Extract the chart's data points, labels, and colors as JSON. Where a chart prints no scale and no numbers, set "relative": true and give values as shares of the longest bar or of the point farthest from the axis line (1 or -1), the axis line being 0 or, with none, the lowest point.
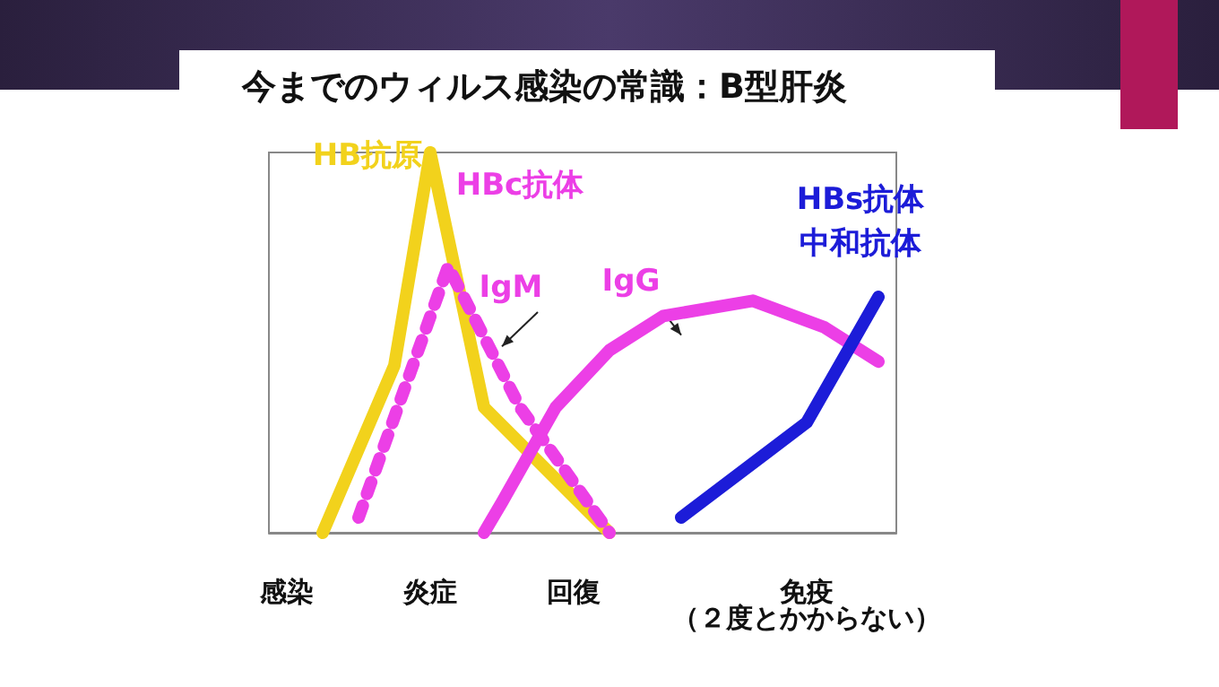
{
  "chart_data": {
    "type": "line",
    "relative": true,
    "title": "今までのウィルス感染の常識：B型肝炎",
    "categories": [
      null,
      "感染",
      null,
      null,
      null,
      null,
      null,
      null,
      null,
      "炎症",
      null,
      null,
      null,
      null,
      null,
      null,
      null,
      "回復",
      null,
      null,
      null,
      null,
      null,
      null,
      null,
      null,
      null,
      null,
      null,
      null,
      "免疫",
      null,
      null,
      null,
      null,
      null
    ],
    "series": [
      {
        "name": "HB抗原",
        "color": "#f2d21c",
        "line_style": "solid",
        "values": [
          null,
          null,
          null,
          0,
          null,
          null,
          null,
          0.44,
          null,
          1,
          null,
          null,
          0.33,
          null,
          null,
          null,
          null,
          null,
          null,
          0,
          null,
          null,
          null,
          null,
          null,
          null,
          null,
          null,
          null,
          null,
          null,
          null,
          null,
          null,
          null,
          null
        ]
      },
      {
        "name": "IgM",
        "color": "#ec3fe6",
        "line_style": "dotted",
        "values": [
          null,
          null,
          null,
          null,
          null,
          0.04,
          null,
          null,
          null,
          null,
          0.7,
          null,
          null,
          null,
          0.33,
          null,
          null,
          null,
          null,
          0,
          null,
          null,
          null,
          null,
          null,
          null,
          null,
          null,
          null,
          null,
          null,
          null,
          null,
          null,
          null,
          null
        ]
      },
      {
        "name": "IgG",
        "color": "#ec3fe6",
        "line_style": "solid",
        "values": [
          null,
          null,
          null,
          null,
          null,
          null,
          null,
          null,
          null,
          null,
          null,
          null,
          0,
          0.08,
          null,
          null,
          0.33,
          null,
          null,
          0.48,
          null,
          null,
          0.57,
          null,
          null,
          null,
          null,
          0.61,
          null,
          null,
          null,
          0.54,
          null,
          null,
          0.45,
          null
        ]
      },
      {
        "name": "HBs抗体",
        "color": "#1c1cd8",
        "line_style": "solid",
        "values": [
          null,
          null,
          null,
          null,
          null,
          null,
          null,
          null,
          null,
          null,
          null,
          null,
          null,
          null,
          null,
          null,
          null,
          null,
          null,
          null,
          null,
          null,
          null,
          0.04,
          null,
          null,
          null,
          null,
          null,
          null,
          0.29,
          null,
          null,
          null,
          0.62,
          null
        ]
      }
    ],
    "annotations": [
      "HBc抗体",
      "（２度とかからない）",
      "中和抗体"
    ],
    "marker": "none",
    "grid": false
  }
}
